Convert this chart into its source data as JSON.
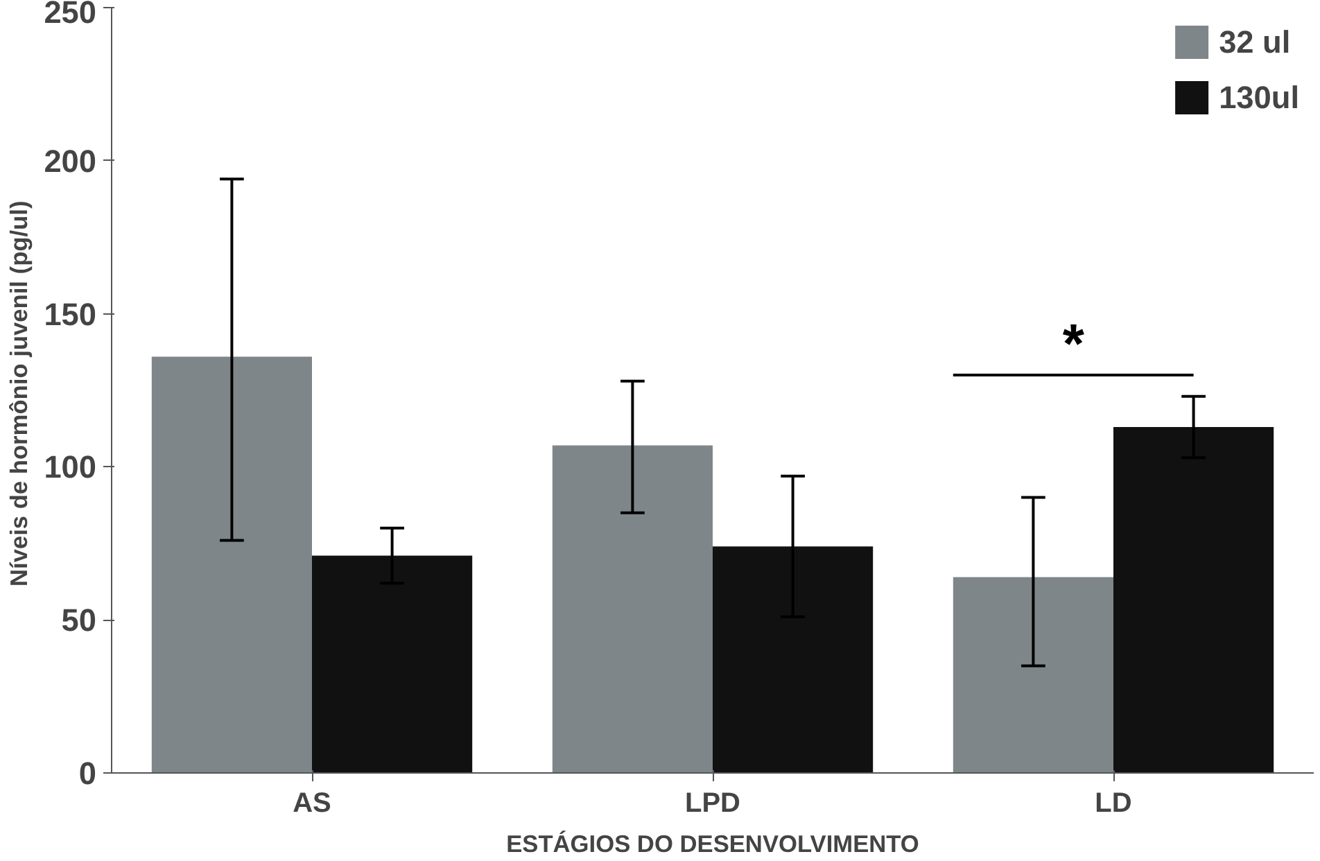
{
  "chart_data": {
    "type": "bar",
    "xlabel": "ESTÁGIOS DO DESENVOLVIMENTO",
    "ylabel": "Níveis de  hormônio juvenil (pg/ul)",
    "categories": [
      "AS",
      "LPD",
      "LD"
    ],
    "series": [
      {
        "name": "32 ul",
        "color": "#7f868a",
        "values": [
          136,
          107,
          64
        ],
        "errors": [
          [
            76,
            194
          ],
          [
            85,
            128
          ],
          [
            35,
            90
          ]
        ]
      },
      {
        "name": "130ul",
        "color": "#111111",
        "values": [
          71,
          74,
          113
        ],
        "errors": [
          [
            62,
            80
          ],
          [
            51,
            97
          ],
          [
            103,
            123
          ]
        ]
      }
    ],
    "ylim": [
      0,
      250
    ],
    "yticks": [
      0,
      50,
      100,
      150,
      200,
      250
    ],
    "grid": false,
    "legend": "top right",
    "annotations": [
      "*"
    ]
  }
}
